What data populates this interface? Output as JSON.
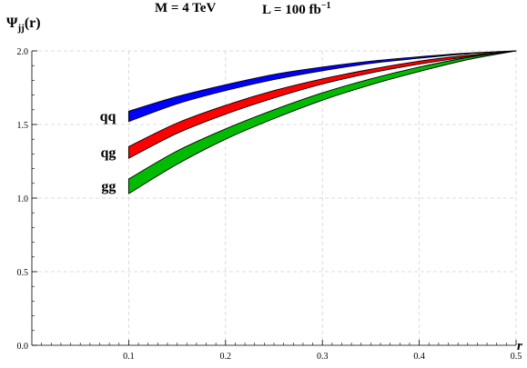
{
  "chart_data": {
    "type": "area",
    "title_parts": {
      "mass": "M = 4 TeV",
      "lumi_base": "L = 100 fb",
      "lumi_sup": "−1"
    },
    "ylabel": {
      "base": "Ψ",
      "sub": "jj",
      "arg": "(r)"
    },
    "xlabel": "r",
    "xlim": [
      0,
      0.5
    ],
    "ylim": [
      0,
      2.0
    ],
    "x_ticks": [
      "0.1",
      "0.2",
      "0.3",
      "0.4",
      "0.5"
    ],
    "y_ticks": [
      "0.0",
      "0.5",
      "1.0",
      "1.5",
      "2.0"
    ],
    "grid": true,
    "series": [
      {
        "name": "qq",
        "color": "#0000ff",
        "x": [
          0.1,
          0.15,
          0.2,
          0.25,
          0.3,
          0.35,
          0.4,
          0.45,
          0.5
        ],
        "upper": [
          1.59,
          1.69,
          1.77,
          1.84,
          1.89,
          1.93,
          1.96,
          1.985,
          2.0
        ],
        "lower": [
          1.52,
          1.64,
          1.73,
          1.805,
          1.865,
          1.915,
          1.95,
          1.98,
          2.0
        ]
      },
      {
        "name": "qg",
        "color": "#ff0000",
        "x": [
          0.1,
          0.15,
          0.2,
          0.25,
          0.3,
          0.35,
          0.4,
          0.45,
          0.5
        ],
        "upper": [
          1.35,
          1.51,
          1.63,
          1.73,
          1.81,
          1.875,
          1.93,
          1.97,
          2.0
        ],
        "lower": [
          1.27,
          1.44,
          1.57,
          1.68,
          1.775,
          1.85,
          1.91,
          1.96,
          2.0
        ]
      },
      {
        "name": "gg",
        "color": "#00bb00",
        "x": [
          0.1,
          0.15,
          0.2,
          0.25,
          0.3,
          0.35,
          0.4,
          0.45,
          0.5
        ],
        "upper": [
          1.13,
          1.32,
          1.47,
          1.6,
          1.715,
          1.81,
          1.89,
          1.955,
          2.0
        ],
        "lower": [
          1.03,
          1.23,
          1.4,
          1.54,
          1.665,
          1.77,
          1.86,
          1.94,
          2.0
        ]
      }
    ]
  }
}
